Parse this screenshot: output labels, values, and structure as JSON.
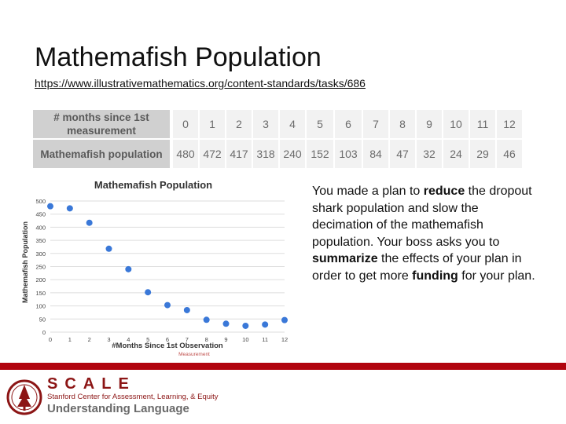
{
  "slide": {
    "title": "Mathemafish Population",
    "url": "https://www.illustrativemathematics.org/content-standards/tasks/686",
    "description": {
      "p1": "You made a plan to ",
      "b1": "reduce",
      "p2": " the dropout shark population and slow the decimation of the mathemafish population. Your boss asks you to ",
      "b2": "summarize",
      "p3": " the effects of your plan in order to get more ",
      "b3": "funding",
      "p4": " for your plan."
    }
  },
  "table": {
    "row1_header": "# months since 1st measurement",
    "row2_header": "Mathemafish population",
    "months": [
      "0",
      "1",
      "2",
      "3",
      "4",
      "5",
      "6",
      "7",
      "8",
      "9",
      "10",
      "11",
      "12"
    ],
    "population": [
      "480",
      "472",
      "417",
      "318",
      "240",
      "152",
      "103",
      "84",
      "47",
      "32",
      "24",
      "29",
      "46"
    ]
  },
  "chart_data": {
    "type": "scatter",
    "title": "Mathemafish Population",
    "xlabel": "#Months Since 1st Observation",
    "xlabel_note": "Measurement",
    "ylabel": "Mathemafish Population",
    "x": [
      0,
      1,
      2,
      3,
      4,
      5,
      6,
      7,
      8,
      9,
      10,
      11,
      12
    ],
    "y": [
      480,
      472,
      417,
      318,
      240,
      152,
      103,
      84,
      47,
      32,
      24,
      29,
      46
    ],
    "xlim": [
      0,
      12
    ],
    "ylim": [
      0,
      500
    ],
    "xticks": [
      "0",
      "1",
      "2",
      "3",
      "4",
      "5",
      "6",
      "7",
      "8",
      "9",
      "10",
      "11",
      "12"
    ],
    "yticks": [
      "0",
      "50",
      "100",
      "150",
      "200",
      "250",
      "300",
      "350",
      "400",
      "450",
      "500"
    ],
    "grid": "horizontal",
    "point_color": "#3a78d8"
  },
  "footer": {
    "scale_word": "SCALE",
    "scale_sub": "Stanford Center for Assessment, Learning, & Equity",
    "ul_word": "Understanding Language",
    "accent": "#b1040e"
  }
}
